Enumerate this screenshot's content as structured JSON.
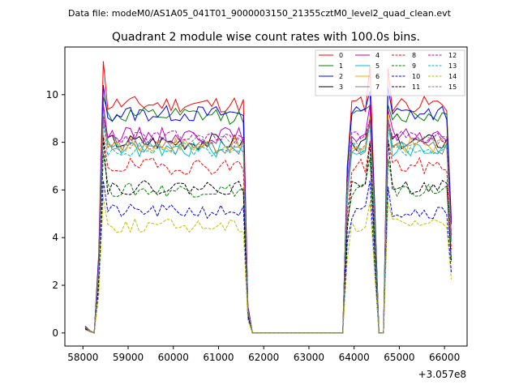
{
  "chart_data": {
    "type": "line",
    "subtitle": "Data file: modeM0/AS1A05_041T01_9000003150_21355cztM0_level2_quad_clean.evt",
    "title": "Quadrant 2 module wise count rates with 100.0s bins.",
    "xlabel": "",
    "ylabel": "",
    "x_offset_label": "+3.057e8",
    "xlim": [
      57600,
      66500
    ],
    "ylim": [
      -0.55,
      12.0
    ],
    "xticks": [
      58000,
      59000,
      60000,
      61000,
      62000,
      63000,
      64000,
      65000,
      66000
    ],
    "xtick_labels": [
      "58000",
      "59000",
      "60000",
      "61000",
      "62000",
      "63000",
      "64000",
      "65000",
      "66000"
    ],
    "yticks": [
      0,
      2,
      4,
      6,
      8,
      10
    ],
    "ytick_labels": [
      "0",
      "2",
      "4",
      "6",
      "8",
      "10"
    ],
    "grid": false,
    "legend_position": "top-right",
    "x": [
      58050,
      58150,
      58250,
      58350,
      58450,
      58550,
      58650,
      58750,
      58850,
      58950,
      59050,
      59150,
      59250,
      59350,
      59450,
      59550,
      59650,
      59750,
      59850,
      59950,
      60050,
      60150,
      60250,
      60350,
      60450,
      60550,
      60650,
      60750,
      60850,
      60950,
      61050,
      61150,
      61250,
      61350,
      61450,
      61550,
      61650,
      61750,
      61850,
      61950,
      62050,
      62150,
      62250,
      62350,
      62450,
      62550,
      62650,
      62750,
      62850,
      62950,
      63050,
      63150,
      63250,
      63350,
      63450,
      63550,
      63650,
      63750,
      63850,
      63950,
      64050,
      64150,
      64250,
      64350,
      64450,
      64550,
      64650,
      64750,
      64850,
      64950,
      65050,
      65150,
      65250,
      65350,
      65450,
      65550,
      65650,
      65750,
      65850,
      65950,
      66050,
      66150
    ],
    "segments": [
      {
        "kind": "rise",
        "times": [
          58050,
          58150,
          58250,
          58350
        ],
        "fractions": [
          0.03,
          0.01,
          0.0,
          0.35
        ]
      },
      {
        "kind": "plateau",
        "start": 58450,
        "end": 61550
      },
      {
        "kind": "fall",
        "times": [
          61650,
          61750
        ],
        "fractions": [
          0.12,
          0.0
        ]
      },
      {
        "kind": "zero",
        "start": 61850,
        "end": 63750
      },
      {
        "kind": "plateau",
        "start": 63850,
        "end": 64550
      },
      {
        "kind": "dip",
        "times": [
          64450,
          64550,
          64650
        ],
        "fractions": [
          0.6,
          0.0,
          0.0
        ]
      },
      {
        "kind": "plateau",
        "start": 64750,
        "end": 66150
      }
    ],
    "series": [
      {
        "name": "0",
        "color": "#ff0000",
        "dash": "solid",
        "level": 9.6,
        "peak": 11.4,
        "noise": 0.35,
        "seed": 11
      },
      {
        "name": "1",
        "color": "#008000",
        "dash": "solid",
        "level": 9.1,
        "peak": 9.9,
        "noise": 0.35,
        "seed": 12
      },
      {
        "name": "2",
        "color": "#0000ff",
        "dash": "solid",
        "level": 9.2,
        "peak": 10.4,
        "noise": 0.35,
        "seed": 13
      },
      {
        "name": "3",
        "color": "#000000",
        "dash": "solid",
        "level": 8.0,
        "peak": 9.0,
        "noise": 0.35,
        "seed": 14
      },
      {
        "name": "4",
        "color": "#bf00bf",
        "dash": "solid",
        "level": 8.3,
        "peak": 9.6,
        "noise": 0.35,
        "seed": 15
      },
      {
        "name": "5",
        "color": "#00bfbf",
        "dash": "solid",
        "level": 7.7,
        "peak": 9.3,
        "noise": 0.35,
        "seed": 16
      },
      {
        "name": "6",
        "color": "#ffa500",
        "dash": "solid",
        "level": 7.9,
        "peak": 9.2,
        "noise": 0.35,
        "seed": 17
      },
      {
        "name": "7",
        "color": "#808080",
        "dash": "solid",
        "level": 7.8,
        "peak": 9.0,
        "noise": 0.35,
        "seed": 18
      },
      {
        "name": "8",
        "color": "#ff0000",
        "dash": "dashed",
        "level": 7.0,
        "peak": 8.3,
        "noise": 0.35,
        "seed": 19
      },
      {
        "name": "9",
        "color": "#008000",
        "dash": "dashed",
        "level": 6.0,
        "peak": 7.5,
        "noise": 0.3,
        "seed": 20
      },
      {
        "name": "10",
        "color": "#0000ff",
        "dash": "dashed",
        "level": 5.1,
        "peak": 6.4,
        "noise": 0.3,
        "seed": 21
      },
      {
        "name": "11",
        "color": "#000000",
        "dash": "dashed",
        "level": 6.1,
        "peak": 8.2,
        "noise": 0.3,
        "seed": 22
      },
      {
        "name": "12",
        "color": "#bf00bf",
        "dash": "dashed",
        "level": 8.2,
        "peak": 9.1,
        "noise": 0.3,
        "seed": 23
      },
      {
        "name": "13",
        "color": "#00bfbf",
        "dash": "dashed",
        "level": 7.7,
        "peak": 8.8,
        "noise": 0.3,
        "seed": 24
      },
      {
        "name": "14",
        "color": "#bfbf00",
        "dash": "dashed",
        "level": 4.5,
        "peak": 5.7,
        "noise": 0.3,
        "seed": 25
      },
      {
        "name": "15",
        "color": "#808080",
        "dash": "dashed",
        "level": 8.0,
        "peak": 9.0,
        "noise": 0.3,
        "seed": 26
      }
    ]
  }
}
